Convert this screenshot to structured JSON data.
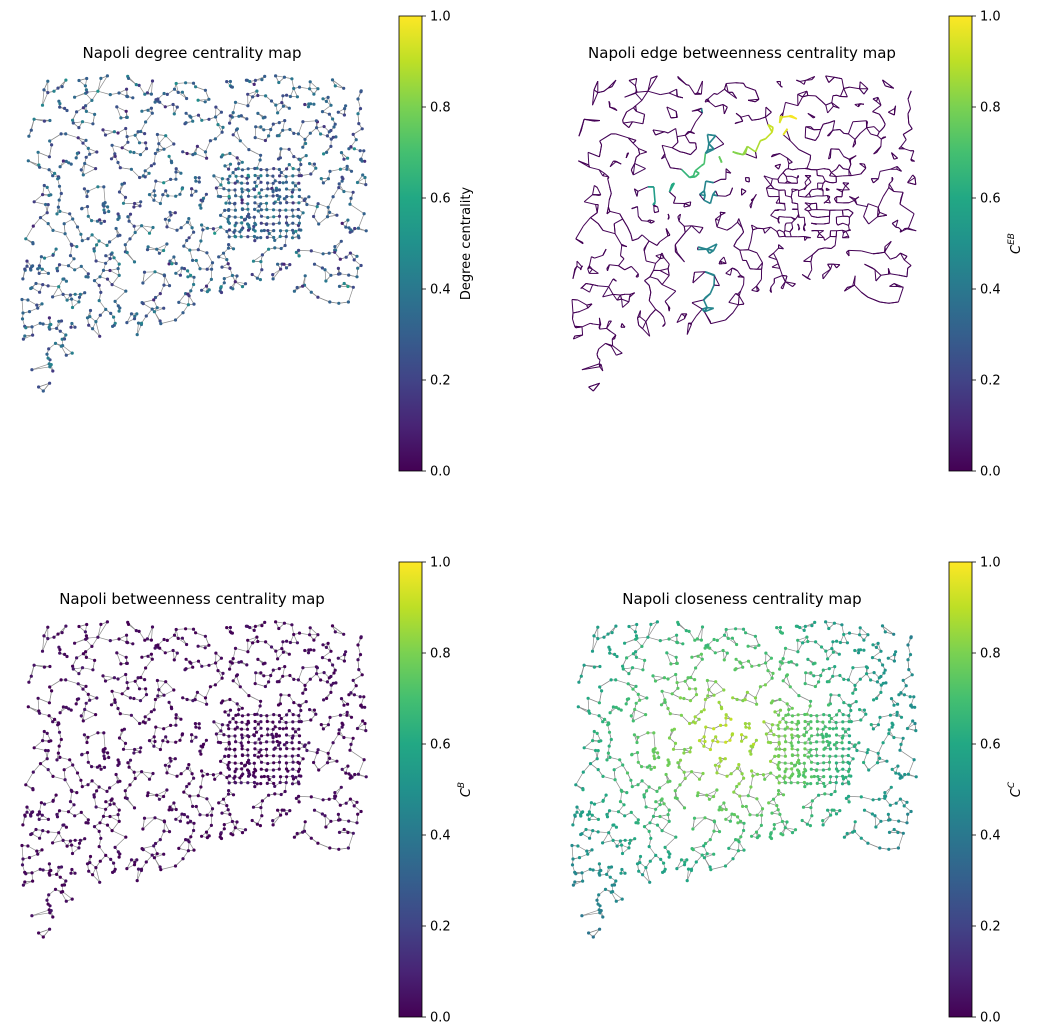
{
  "colormap": {
    "name": "viridis",
    "stops": [
      "#440154",
      "#482475",
      "#414487",
      "#355f8d",
      "#2a788e",
      "#21918c",
      "#22a884",
      "#44bf70",
      "#7ad151",
      "#bddf26",
      "#fde725"
    ]
  },
  "edge_color": "#8c8c8c",
  "panels": [
    {
      "title": "Napoli degree centrality map",
      "colorbar_label": "Degree centrality",
      "colorbar_label_is_math": false,
      "ticks": [
        "0.0",
        "0.2",
        "0.4",
        "0.6",
        "0.8",
        "1.0"
      ],
      "range": [
        0,
        1
      ],
      "mode": "nodes",
      "node_value_mean": 0.3,
      "node_value_spread": 0.25
    },
    {
      "title": "Napoli edge betweenness centrality map",
      "colorbar_label": "C",
      "colorbar_label_sup": "EB",
      "colorbar_label_is_math": true,
      "ticks": [
        "0.0",
        "0.2",
        "0.4",
        "0.6",
        "0.8",
        "1.0"
      ],
      "range": [
        0,
        1
      ],
      "mode": "edges",
      "node_value_mean": 0.02,
      "node_value_spread": 0.05
    },
    {
      "title": "Napoli betweenness centrality map",
      "colorbar_label": "C",
      "colorbar_label_sup": "B",
      "colorbar_label_is_math": true,
      "ticks": [
        "0.0",
        "0.2",
        "0.4",
        "0.6",
        "0.8",
        "1.0"
      ],
      "range": [
        0,
        1
      ],
      "mode": "nodes",
      "node_value_mean": 0.02,
      "node_value_spread": 0.06
    },
    {
      "title": "Napoli closeness centrality map",
      "colorbar_label": "C",
      "colorbar_label_sup": "C",
      "colorbar_label_is_math": true,
      "ticks": [
        "0.0",
        "0.2",
        "0.4",
        "0.6",
        "0.8",
        "1.0"
      ],
      "range": [
        0,
        1
      ],
      "mode": "nodes",
      "node_value_mean": 0.72,
      "node_value_spread": 0.12
    }
  ]
}
